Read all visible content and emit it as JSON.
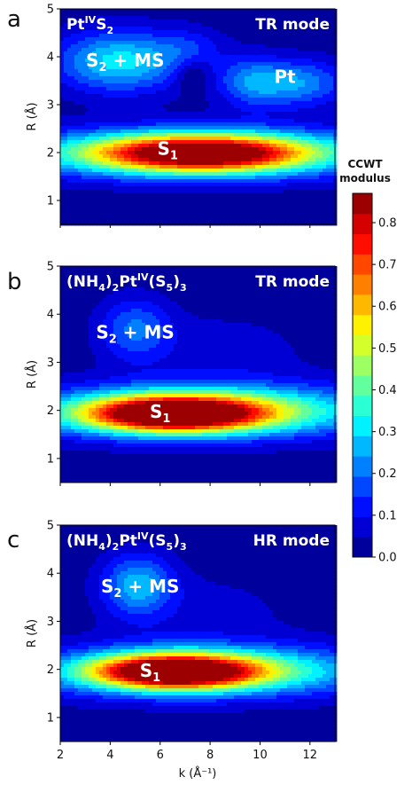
{
  "chart_data": [
    {
      "type": "heatmap",
      "panel_letter": "a",
      "panel_label": {
        "base": "Pt",
        "sup": "IV",
        "tail": "S",
        "tail_sub": "2"
      },
      "mode_label": "TR mode",
      "ylabel": "R (Å)",
      "xlim": [
        2,
        13
      ],
      "ylim": [
        0.5,
        5
      ],
      "yticks": [
        "1",
        "2",
        "3",
        "4",
        "5"
      ],
      "annotations": [
        {
          "main": "S",
          "sub": "1",
          "rest": "",
          "x": 6.3,
          "y": 1.95
        },
        {
          "main": "S",
          "sub": "2",
          "rest": " + MS",
          "x": 4.6,
          "y": 3.8
        },
        {
          "main": "Pt",
          "sub": "",
          "rest": "",
          "x": 11.0,
          "y": 3.45
        }
      ],
      "features": [
        {
          "k": 7.6,
          "r": 1.98,
          "sk": 3.2,
          "sr": 0.28,
          "amp": 0.86
        },
        {
          "k": 7.6,
          "r": 1.98,
          "sk": 7.0,
          "sr": 0.4,
          "amp": 0.2
        },
        {
          "k": 4.4,
          "r": 3.9,
          "sk": 1.8,
          "sr": 0.45,
          "amp": 0.3
        },
        {
          "k": 11.2,
          "r": 3.45,
          "sk": 1.6,
          "sr": 0.35,
          "amp": 0.24
        },
        {
          "k": 9.5,
          "r": 3.5,
          "sk": 0.8,
          "sr": 0.4,
          "amp": 0.1
        },
        {
          "k": 7.2,
          "r": 4.2,
          "sk": 1.0,
          "sr": 0.3,
          "amp": 0.08
        },
        {
          "k": 7.3,
          "r": 3.6,
          "sk": 0.45,
          "sr": 0.22,
          "amp": -0.1
        }
      ]
    },
    {
      "type": "heatmap",
      "panel_letter": "b",
      "panel_label": {
        "base": "(NH",
        "sub1": "4",
        "mid": ")",
        "sub2": "2",
        "base2": "Pt",
        "sup": "IV",
        "tail": "(S",
        "sub3": "5",
        "tail2": ")",
        "sub4": "3"
      },
      "mode_label": "TR mode",
      "ylabel": "R (Å)",
      "xlim": [
        2,
        13
      ],
      "ylim": [
        0.5,
        5
      ],
      "yticks": [
        "1",
        "2",
        "3",
        "4",
        "5"
      ],
      "annotations": [
        {
          "main": "S",
          "sub": "1",
          "rest": "",
          "x": 6.0,
          "y": 1.85
        },
        {
          "main": "S",
          "sub": "2",
          "rest": " + MS",
          "x": 5.0,
          "y": 3.5
        }
      ],
      "features": [
        {
          "k": 6.5,
          "r": 1.92,
          "sk": 2.5,
          "sr": 0.26,
          "amp": 0.82
        },
        {
          "k": 8.5,
          "r": 2.0,
          "sk": 4.5,
          "sr": 0.35,
          "amp": 0.3
        },
        {
          "k": 7.0,
          "r": 1.95,
          "sk": 6.5,
          "sr": 0.45,
          "amp": 0.12
        },
        {
          "k": 5.0,
          "r": 3.7,
          "sk": 1.0,
          "sr": 0.45,
          "amp": 0.18
        },
        {
          "k": 8.5,
          "r": 3.2,
          "sk": 2.5,
          "sr": 0.6,
          "amp": 0.06
        }
      ]
    },
    {
      "type": "heatmap",
      "panel_letter": "c",
      "panel_label": {
        "base": "(NH",
        "sub1": "4",
        "mid": ")",
        "sub2": "2",
        "base2": "Pt",
        "sup": "IV",
        "tail": "(S",
        "sub3": "5",
        "tail2": ")",
        "sub4": "3"
      },
      "mode_label": "HR mode",
      "ylabel": "R (Å)",
      "xlabel": "k (Å⁻¹)",
      "xlim": [
        2,
        13
      ],
      "ylim": [
        0.5,
        5
      ],
      "xticks": [
        "2",
        "4",
        "6",
        "8",
        "10",
        "12"
      ],
      "yticks": [
        "1",
        "2",
        "3",
        "4",
        "5"
      ],
      "annotations": [
        {
          "main": "S",
          "sub": "1",
          "rest": "",
          "x": 5.6,
          "y": 1.85
        },
        {
          "main": "S",
          "sub": "2",
          "rest": " + MS",
          "x": 5.2,
          "y": 3.6
        }
      ],
      "features": [
        {
          "k": 6.5,
          "r": 1.95,
          "sk": 2.3,
          "sr": 0.25,
          "amp": 0.82
        },
        {
          "k": 8.5,
          "r": 1.97,
          "sk": 4.0,
          "sr": 0.33,
          "amp": 0.28
        },
        {
          "k": 7.0,
          "r": 1.95,
          "sk": 6.5,
          "sr": 0.45,
          "amp": 0.12
        },
        {
          "k": 5.1,
          "r": 3.75,
          "sk": 1.0,
          "sr": 0.45,
          "amp": 0.25
        },
        {
          "k": 8.0,
          "r": 3.2,
          "sk": 2.5,
          "sr": 0.6,
          "amp": 0.05
        }
      ]
    }
  ],
  "colorbar": {
    "title_line1": "CCWT",
    "title_line2": "modulus",
    "range": [
      0,
      0.87
    ],
    "ticks": [
      "0.0",
      "0.1",
      "0.2",
      "0.3",
      "0.4",
      "0.5",
      "0.6",
      "0.7",
      "0.8"
    ],
    "levels": 18
  }
}
